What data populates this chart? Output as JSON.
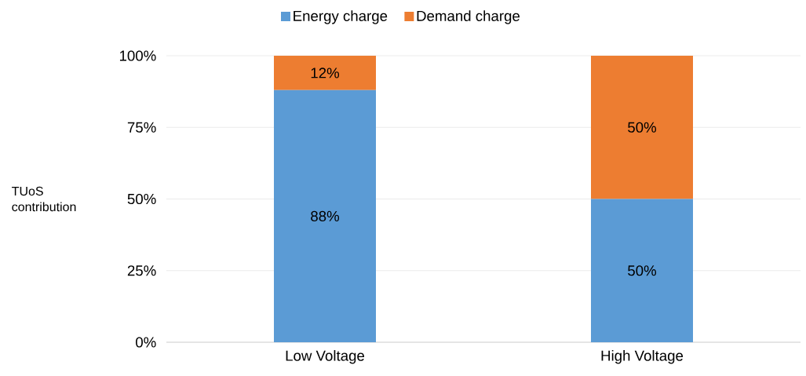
{
  "chart_data": {
    "type": "bar",
    "stacked": true,
    "ylabel": "TUoS contribution",
    "categories": [
      "Low Voltage",
      "High Voltage"
    ],
    "series": [
      {
        "name": "Energy charge",
        "color": "#5b9bd5",
        "values": [
          88,
          50
        ],
        "value_labels": [
          "88%",
          "50%"
        ]
      },
      {
        "name": "Demand charge",
        "color": "#ed7d31",
        "values": [
          12,
          50
        ],
        "value_labels": [
          "12%",
          "50%"
        ]
      }
    ],
    "ylim": [
      0,
      100
    ],
    "yticks": [
      {
        "value": 0,
        "label": "0%"
      },
      {
        "value": 25,
        "label": "25%"
      },
      {
        "value": 50,
        "label": "50%"
      },
      {
        "value": 75,
        "label": "75%"
      },
      {
        "value": 100,
        "label": "100%"
      }
    ],
    "grid": "y",
    "legend": "top"
  }
}
